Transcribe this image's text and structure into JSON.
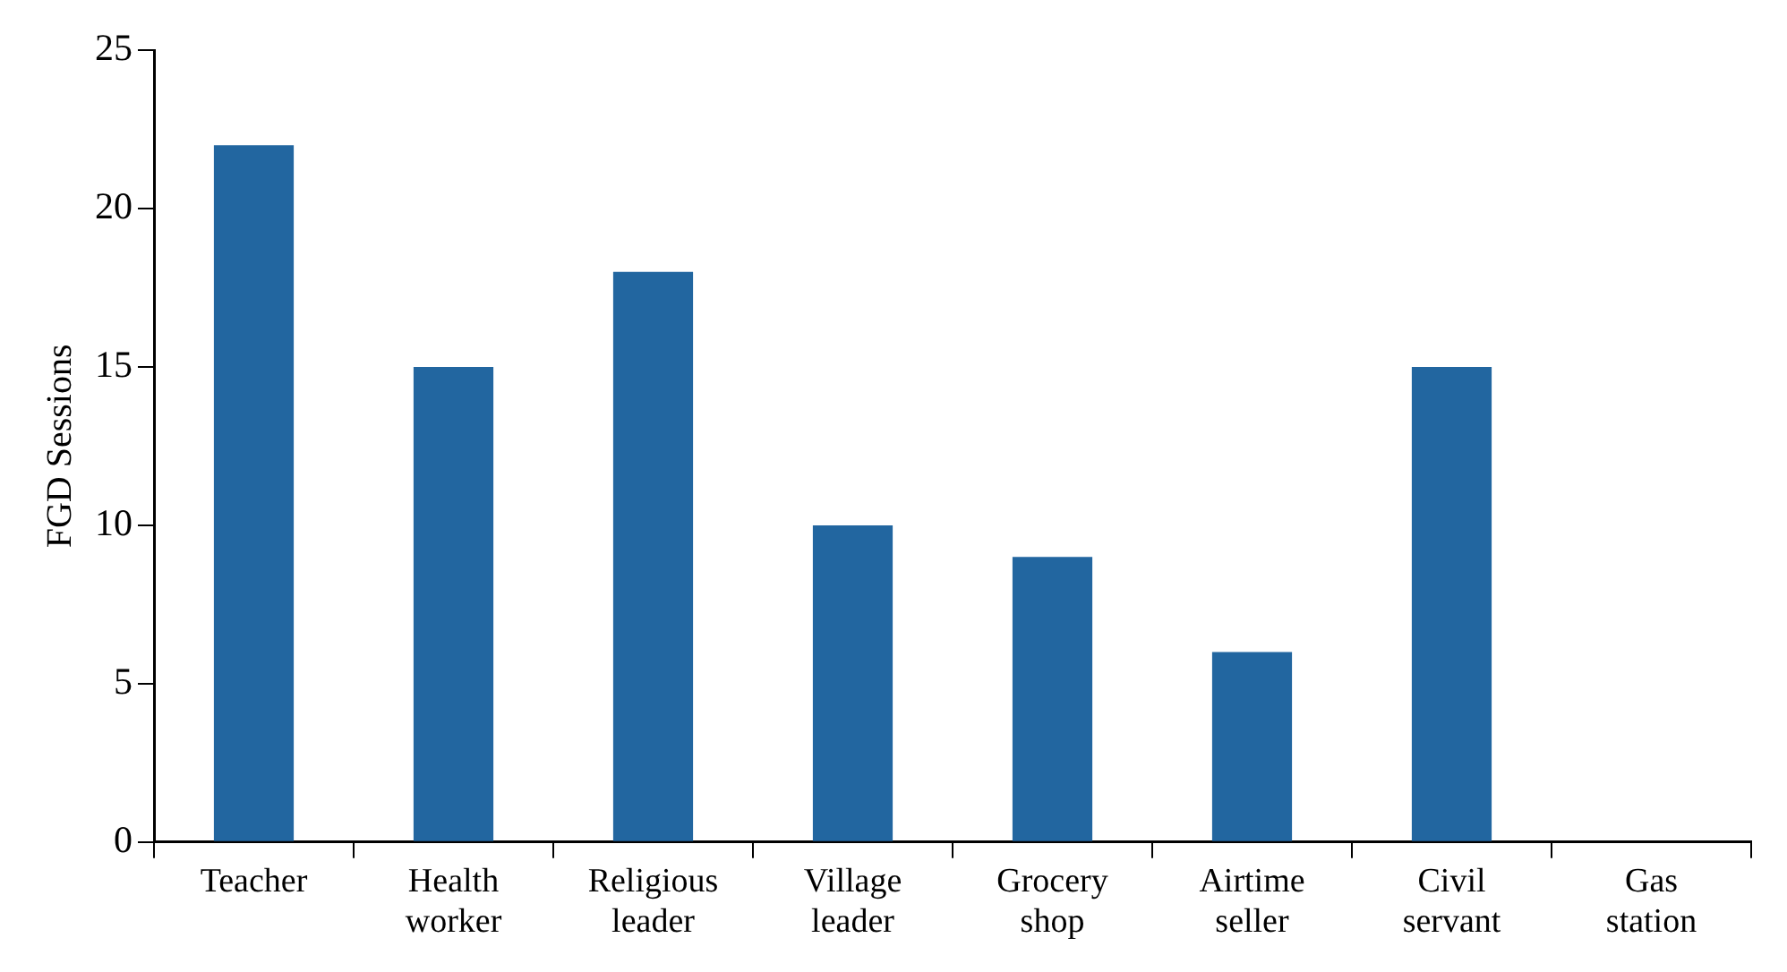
{
  "chart_data": {
    "type": "bar",
    "ylabel": "FGD Sessions",
    "categories": [
      "Teacher",
      "Health worker",
      "Religious leader",
      "Village leader",
      "Grocery shop",
      "Airtime seller",
      "Civil servant",
      "Gas station"
    ],
    "values": [
      22,
      15,
      18,
      10,
      9,
      6,
      15,
      0
    ],
    "color": "#2266a0",
    "ylim": [
      0,
      25
    ],
    "yticks": [
      0,
      5,
      10,
      15,
      20,
      25
    ],
    "grid": false,
    "legend": false
  }
}
